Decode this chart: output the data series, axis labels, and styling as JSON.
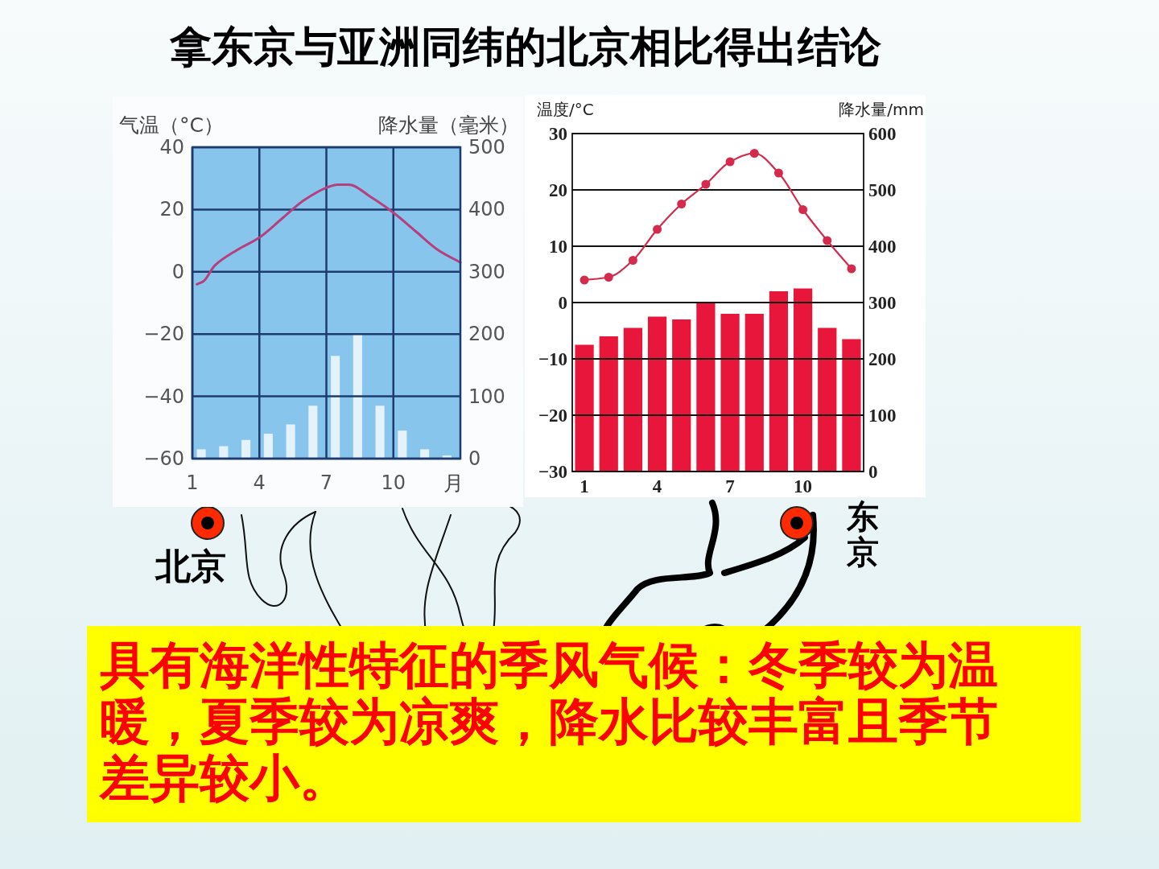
{
  "chart_data": [
    {
      "type": "other",
      "title": "拿东京与亚洲同纬的北京相比得出结论"
    },
    {
      "type": "bar",
      "ylabel": "气温（°C）",
      "y2label": "降水量（毫米）",
      "xlabel": "月",
      "x": [
        1.4,
        2.4,
        3.4,
        4.4,
        5.4,
        6.4,
        7.4,
        8.4,
        9.4,
        10.4,
        11.4,
        12.4
      ],
      "xlim": [
        1,
        13
      ],
      "xticks": [
        1,
        4,
        7,
        10
      ],
      "ylim": [
        -60,
        40
      ],
      "yticks": [
        {
          "value": -60,
          "label": "−60"
        },
        {
          "value": -40,
          "label": "−40"
        },
        {
          "value": -20,
          "label": "−20"
        },
        0,
        20,
        40
      ],
      "y2lim": [
        0,
        500
      ],
      "y2ticks": [
        0,
        100,
        200,
        300,
        400,
        500
      ],
      "grid": true,
      "series": [
        {
          "type": "bar",
          "axis": "y2",
          "color": "#e4f2fb",
          "values": [
            15,
            20,
            30,
            40,
            55,
            85,
            165,
            200,
            85,
            45,
            15,
            5
          ]
        },
        {
          "type": "line",
          "color": "#b5407e",
          "x": [
            1.2,
            1.5,
            2,
            3,
            4,
            5,
            6,
            7,
            7.5,
            8,
            9,
            10,
            11,
            12,
            13
          ],
          "values": [
            -4,
            -3,
            2,
            7,
            11,
            17,
            23,
            27,
            28,
            28,
            24,
            19,
            13,
            7,
            3
          ]
        }
      ]
    },
    {
      "type": "bar",
      "ylabel": "温度/°C",
      "y2label": "降水量/mm",
      "categories": [
        "1",
        null,
        null,
        "4",
        null,
        null,
        "7",
        null,
        null,
        "10",
        null,
        null
      ],
      "ylim": [
        -30,
        30
      ],
      "yticks": [
        {
          "value": -30,
          "label": "−30"
        },
        {
          "value": -20,
          "label": "−20"
        },
        {
          "value": -10,
          "label": "−10"
        },
        0,
        10,
        20,
        30
      ],
      "y2lim": [
        0,
        600
      ],
      "y2ticks": [
        0,
        100,
        200,
        300,
        400,
        500,
        600
      ],
      "grid": "y",
      "series": [
        {
          "type": "bar",
          "axis": "y2",
          "color": "#e8163a",
          "values": [
            225,
            240,
            255,
            275,
            270,
            300,
            280,
            280,
            320,
            325,
            255,
            235
          ]
        },
        {
          "type": "line",
          "color": "#d42a4c",
          "marker": "circle",
          "values": [
            4,
            4.5,
            7.5,
            13,
            17.5,
            21,
            25,
            26.5,
            23,
            16.5,
            11,
            6
          ]
        }
      ]
    },
    {
      "type": "other",
      "annotations": [
        "北京",
        "东京",
        "具有海洋性特征的季风气候：冬季较为温暖，夏季较为凉爽，降水比较丰富且季节差异较小。"
      ]
    }
  ]
}
